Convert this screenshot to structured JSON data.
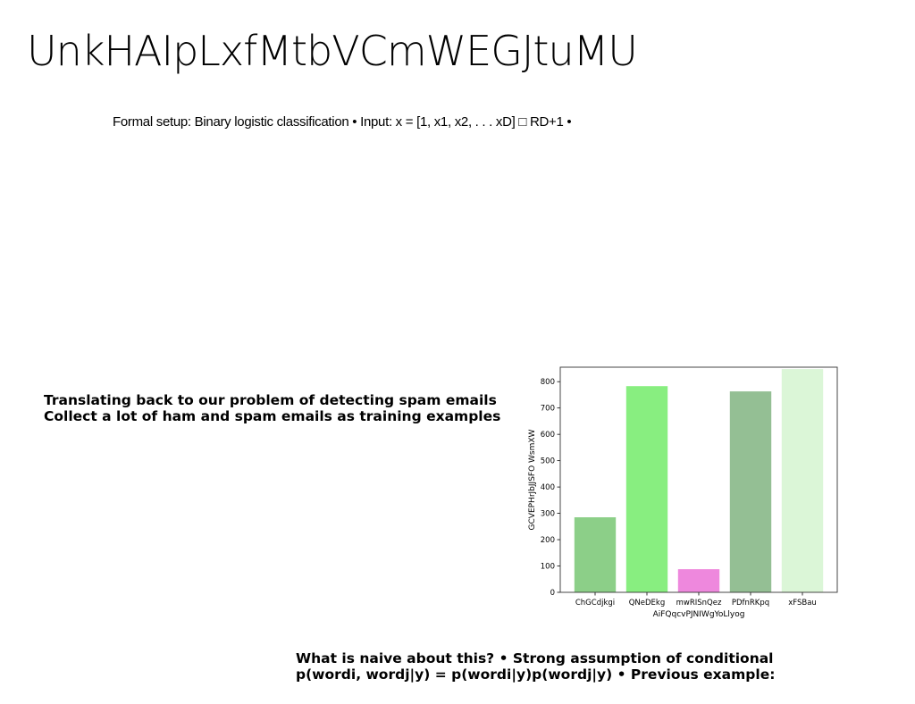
{
  "slide": {
    "title": "UnkHAIpLxfMtbVCmWEGJtuMU",
    "setup_line": "Formal setup: Binary logistic classification • Input: x = [1, x1, x2, . . . xD] □ RD+1 •",
    "paragraph1": [
      "Translating back to our problem of detecting spam emails",
      "Collect a lot of ham and spam emails as training examples"
    ],
    "paragraph2": [
      "What is naive about this? • Strong assumption of conditional",
      "p(wordi, wordj|y) = p(wordi|y)p(wordj|y) • Previous example:"
    ]
  },
  "chart_data": {
    "type": "bar",
    "categories": [
      "ChGCdjkgi",
      "QNeDEkg",
      "mwRISnQez",
      "PDfnRKpq",
      "xFSBau"
    ],
    "values": [
      285,
      783,
      88,
      763,
      848
    ],
    "colors": [
      "#8ccf88",
      "#88ee80",
      "#ee88dd",
      "#94bf94",
      "#dbf6d7"
    ],
    "xlabel": "AiFQqcvPJNIWgYoLlyog",
    "ylabel": "GCVEPHrJbJJSFO WsmXW",
    "ylim": [
      0,
      855
    ],
    "yticks": [
      0,
      100,
      200,
      300,
      400,
      500,
      600,
      700,
      800
    ],
    "grid": false,
    "legend": "none"
  }
}
